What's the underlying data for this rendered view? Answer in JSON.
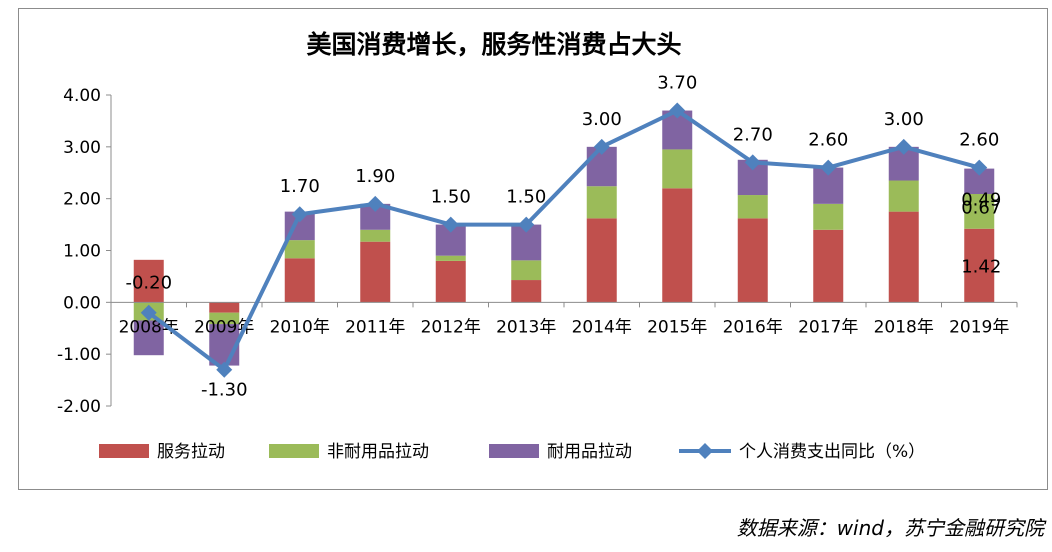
{
  "chart_data": {
    "type": "bar",
    "stacked": true,
    "title": "美国消费增长，服务性消费占大头",
    "categories": [
      "2008年",
      "2009年",
      "2010年",
      "2011年",
      "2012年",
      "2013年",
      "2014年",
      "2015年",
      "2016年",
      "2017年",
      "2018年",
      "2019年"
    ],
    "ylim": [
      -2,
      4
    ],
    "yticks": [
      "-2.00",
      "-1.00",
      "0.00",
      "1.00",
      "2.00",
      "3.00",
      "4.00"
    ],
    "grid": false,
    "legend_position": "bottom",
    "series": [
      {
        "name": "服务拉动",
        "type": "bar",
        "color": "#c0504d",
        "values": [
          0.82,
          -0.2,
          0.85,
          1.17,
          0.8,
          0.43,
          1.62,
          2.2,
          1.62,
          1.4,
          1.75,
          1.42
        ]
      },
      {
        "name": "非耐用品拉动",
        "type": "bar",
        "color": "#9bbb59",
        "values": [
          -0.35,
          -0.22,
          0.35,
          0.23,
          0.1,
          0.38,
          0.62,
          0.75,
          0.45,
          0.5,
          0.6,
          0.67
        ]
      },
      {
        "name": "耐用品拉动",
        "type": "bar",
        "color": "#8064a2",
        "values": [
          -0.67,
          -0.8,
          0.55,
          0.5,
          0.6,
          0.69,
          0.76,
          0.75,
          0.68,
          0.7,
          0.65,
          0.49
        ]
      },
      {
        "name": "个人消费支出同比（%）",
        "type": "line",
        "color": "#4f81bd",
        "values": [
          -0.2,
          -1.3,
          1.7,
          1.9,
          1.5,
          1.5,
          3.0,
          3.7,
          2.7,
          2.6,
          3.0,
          2.6
        ]
      }
    ],
    "line_labels": [
      "-0.20",
      "-1.30",
      "1.70",
      "1.90",
      "1.50",
      "1.50",
      "3.00",
      "3.70",
      "2.70",
      "2.60",
      "3.00",
      "2.60"
    ],
    "bar_labels_2019": [
      "1.42",
      "0.67",
      "0.49"
    ]
  },
  "source": "数据来源：wind，苏宁金融研究院"
}
